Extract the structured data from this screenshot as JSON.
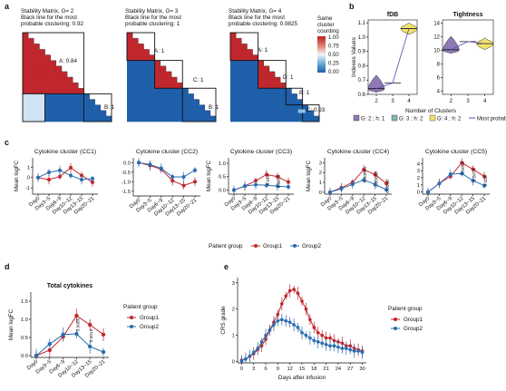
{
  "colors": {
    "group1": "#c0272d",
    "group2": "#2a6db0",
    "g2": "#8e79b5",
    "g3": "#7fb7b2",
    "g4": "#f1e36b",
    "matrix_high": "#c0272d",
    "matrix_low": "#1f5faa"
  },
  "panel_a": {
    "letter": "a",
    "matrices": [
      {
        "title": "Stability Matrix, G= 2",
        "subtitle_l1": "Black line for the most",
        "subtitle_l2": "probable clustering:  0.92",
        "labels": [
          "A: 0.84",
          "B: 1"
        ]
      },
      {
        "title": "Stability Matrix, G= 3",
        "subtitle_l1": "Black line for the most",
        "subtitle_l2": "probable clustering:  1",
        "labels": [
          "A: 1",
          "C: 1",
          "B: 1"
        ]
      },
      {
        "title": "Stability Matrix, G= 4",
        "subtitle_l1": "Black line for the most",
        "subtitle_l2": "probable clustering:  0.9825",
        "labels": [
          "A: 1",
          "D: 1",
          "B: 1",
          "C: 0.93"
        ]
      }
    ],
    "colorbar": {
      "title_l1": "Same",
      "title_l2": "cluster",
      "title_l3": "counting",
      "ticks": [
        "1.00",
        "0.75",
        "0.50",
        "0.25",
        "0.00"
      ]
    }
  },
  "panel_b": {
    "letter": "b",
    "ylabel": "Indexes Values",
    "xlabel": "Number of Clusters",
    "legend": [
      "G: 2 ; h: 1",
      "G: 3 ; h: 2",
      "G: 4 ; h: 2",
      "Most probable"
    ],
    "plots": [
      {
        "title": "fDB",
        "yticks": [
          "0.6",
          "0.7",
          "0.8",
          "0.9",
          "1.0",
          "1.1"
        ],
        "xticks": [
          "2",
          "3",
          "4"
        ],
        "ylim": [
          0.6,
          1.12
        ],
        "x": [
          2,
          3,
          4
        ],
        "values": [
          0.64,
          0.68,
          1.06
        ]
      },
      {
        "title": "Tightness",
        "yticks": [
          "4",
          "6",
          "8",
          "10",
          "12",
          "14"
        ],
        "xticks": [
          "2",
          "3",
          "4"
        ],
        "ylim": [
          3.5,
          14.5
        ],
        "x": [
          2,
          3,
          4
        ],
        "values": [
          10.1,
          11.3,
          11.0
        ]
      }
    ]
  },
  "panel_c": {
    "letter": "c",
    "ylabel": "Mean logFC",
    "legend_title": "Patient group",
    "legend": [
      "Group1",
      "Group2"
    ]
  },
  "panel_d": {
    "letter": "d",
    "title": "Total cytokines",
    "ylabel": "Mean logFC",
    "legend_title": "Patient group",
    "legend": [
      "Group1",
      "Group2"
    ]
  },
  "panel_e": {
    "letter": "e",
    "ylabel": "CRS grade",
    "xlabel": "Days after infusion",
    "legend_title": "Patient group",
    "legend": [
      "Group1",
      "Group2"
    ]
  },
  "chart_data": [
    {
      "id": "cc1",
      "type": "line",
      "title": "Cytokine cluster (CC1)",
      "ylabel": "Mean logFC",
      "categories": [
        "Day0",
        "Day3~5",
        "Day6~9",
        "Day10~12",
        "Day13~15",
        "Day20~21"
      ],
      "yticks": [
        "-1",
        "0",
        "1"
      ],
      "ylim": [
        -1.6,
        1.9
      ],
      "series": [
        {
          "name": "Group1",
          "values": [
            0.0,
            -0.2,
            0.1,
            0.95,
            0.2,
            -0.45
          ]
        },
        {
          "name": "Group2",
          "values": [
            0.0,
            0.5,
            0.7,
            0.2,
            -0.2,
            -0.1
          ]
        }
      ],
      "annotations": []
    },
    {
      "id": "cc2",
      "type": "line",
      "title": "Cytokine cluster (CC2)",
      "ylabel": "",
      "categories": [
        "Day0",
        "Day3~5",
        "Day6~9",
        "Day10~12",
        "Day13~15",
        "Day20~21"
      ],
      "yticks": [
        "0.0",
        "-0.5",
        "-1.0",
        "-1.5"
      ],
      "ylim": [
        -1.75,
        0.25
      ],
      "series": [
        {
          "name": "Group1",
          "values": [
            0.0,
            -0.15,
            -0.35,
            -0.95,
            -1.2,
            -1.0
          ]
        },
        {
          "name": "Group2",
          "values": [
            0.0,
            -0.1,
            -0.3,
            -0.75,
            -0.75,
            -0.4
          ]
        }
      ],
      "annotations": []
    },
    {
      "id": "cc3",
      "type": "line",
      "title": "Cytokine cluster (CC3)",
      "ylabel": "Mean logFC",
      "categories": [
        "Day0",
        "Day3~5",
        "Day6~9",
        "Day10~12",
        "Day13~15",
        "Day20~21"
      ],
      "yticks": [
        "0.0",
        "0.5",
        "1.0"
      ],
      "ylim": [
        -0.15,
        1.2
      ],
      "series": [
        {
          "name": "Group1",
          "values": [
            0.0,
            0.15,
            0.35,
            0.58,
            0.5,
            0.3
          ]
        },
        {
          "name": "Group2",
          "values": [
            0.0,
            0.15,
            0.2,
            0.18,
            0.15,
            0.12
          ]
        }
      ],
      "annotations": [
        {
          "label": "0.019",
          "index": 3
        },
        {
          "label": "0.0015",
          "index": 4
        }
      ]
    },
    {
      "id": "cc4",
      "type": "line",
      "title": "Cytokine cluster (CC4)",
      "ylabel": "Mean logFC",
      "categories": [
        "Day0",
        "Day3~5",
        "Day6~9",
        "Day10~12",
        "Day13~15",
        "Day20~21"
      ],
      "yticks": [
        "0",
        "1",
        "2",
        "3"
      ],
      "ylim": [
        -0.2,
        3.5
      ],
      "series": [
        {
          "name": "Group1",
          "values": [
            0.0,
            0.45,
            1.0,
            2.3,
            1.8,
            0.9
          ]
        },
        {
          "name": "Group2",
          "values": [
            0.0,
            0.35,
            0.8,
            1.25,
            0.8,
            0.25
          ]
        }
      ],
      "annotations": [
        {
          "label": "0.00094",
          "index": 3
        },
        {
          "label": "0.00098",
          "index": 4
        },
        {
          "label": "0.0098",
          "index": 5
        }
      ]
    },
    {
      "id": "cc5",
      "type": "line",
      "title": "Cytokine cluster (CC5)",
      "ylabel": "",
      "categories": [
        "Day0",
        "Day3~5",
        "Day6~9",
        "Day10~12",
        "Day13~15",
        "Day20~21"
      ],
      "yticks": [
        "0",
        "1",
        "2",
        "3",
        "4"
      ],
      "ylim": [
        -0.3,
        4.8
      ],
      "series": [
        {
          "name": "Group1",
          "values": [
            0.0,
            1.2,
            2.2,
            4.1,
            3.2,
            2.2
          ]
        },
        {
          "name": "Group2",
          "values": [
            0.0,
            1.2,
            2.5,
            2.6,
            1.6,
            0.9
          ]
        }
      ],
      "annotations": [
        {
          "label": "0.0033",
          "index": 3
        },
        {
          "label": "0.0074",
          "index": 4
        },
        {
          "label": "0.036",
          "index": 5
        }
      ]
    },
    {
      "id": "total",
      "type": "line",
      "title": "Total cytokines",
      "ylabel": "Mean logFC",
      "categories": [
        "Day0",
        "Day3~5",
        "Day6~9",
        "Day10~12",
        "Day13~15",
        "Day20~21"
      ],
      "yticks": [
        "0.0",
        "0.5",
        "1.0",
        "1.5"
      ],
      "ylim": [
        -0.05,
        1.75
      ],
      "series": [
        {
          "name": "Group1",
          "values": [
            0.0,
            0.15,
            0.52,
            1.1,
            0.85,
            0.58
          ]
        },
        {
          "name": "Group2",
          "values": [
            0.0,
            0.32,
            0.58,
            0.6,
            0.25,
            0.1
          ]
        }
      ],
      "annotations": [
        {
          "label": "0.0065",
          "index": 3
        },
        {
          "label": "0.0019",
          "index": 4
        }
      ]
    },
    {
      "id": "crs",
      "type": "line",
      "title": "",
      "ylabel": "CRS grade",
      "xlabel": "Days after infusion",
      "xticks": [
        "0",
        "3",
        "6",
        "9",
        "12",
        "15",
        "18",
        "21",
        "24",
        "27",
        "30"
      ],
      "xlim": [
        -1,
        31
      ],
      "yticks": [
        "0",
        "1",
        "2",
        "3"
      ],
      "ylim": [
        -0.05,
        3.2
      ],
      "series": [
        {
          "name": "Group1",
          "x": [
            0,
            1,
            2,
            3,
            4,
            5,
            6,
            7,
            8,
            9,
            10,
            11,
            12,
            13,
            14,
            15,
            16,
            17,
            18,
            19,
            20,
            21,
            22,
            23,
            24,
            25,
            26,
            27,
            28,
            29,
            30
          ],
          "values": [
            0.05,
            0.1,
            0.2,
            0.3,
            0.45,
            0.6,
            0.85,
            1.2,
            1.5,
            1.8,
            2.2,
            2.5,
            2.7,
            2.75,
            2.6,
            2.3,
            2.0,
            1.6,
            1.3,
            1.1,
            1.0,
            0.9,
            0.9,
            0.8,
            0.75,
            0.7,
            0.6,
            0.6,
            0.5,
            0.45,
            0.4
          ]
        },
        {
          "name": "Group2",
          "x": [
            0,
            1,
            2,
            3,
            4,
            5,
            6,
            7,
            8,
            9,
            10,
            11,
            12,
            13,
            14,
            15,
            16,
            17,
            18,
            19,
            20,
            21,
            22,
            23,
            24,
            25,
            26,
            27,
            28,
            29,
            30
          ],
          "values": [
            0.02,
            0.1,
            0.2,
            0.35,
            0.5,
            0.75,
            1.0,
            1.2,
            1.4,
            1.55,
            1.6,
            1.55,
            1.5,
            1.4,
            1.3,
            1.1,
            1.0,
            0.9,
            0.8,
            0.75,
            0.7,
            0.65,
            0.6,
            0.6,
            0.55,
            0.5,
            0.5,
            0.45,
            0.4,
            0.4,
            0.35
          ]
        }
      ],
      "annotations": []
    }
  ]
}
